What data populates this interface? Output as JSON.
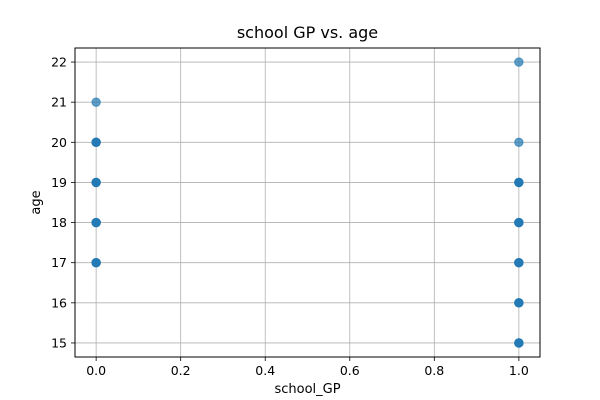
{
  "chart_data": {
    "type": "scatter",
    "title": "school GP vs. age",
    "xlabel": "school_GP",
    "ylabel": "age",
    "xlim": [
      -0.05,
      1.05
    ],
    "ylim": [
      14.65,
      22.35
    ],
    "xticks": [
      0.0,
      0.2,
      0.4,
      0.6,
      0.8,
      1.0
    ],
    "xtick_labels": [
      "0.0",
      "0.2",
      "0.4",
      "0.6",
      "0.8",
      "1.0"
    ],
    "yticks": [
      15,
      16,
      17,
      18,
      19,
      20,
      21,
      22
    ],
    "ytick_labels": [
      "15",
      "16",
      "17",
      "18",
      "19",
      "20",
      "21",
      "22"
    ],
    "grid": true,
    "color": "#1f77b4",
    "points": [
      {
        "x": 0,
        "y": 17
      },
      {
        "x": 0,
        "y": 18
      },
      {
        "x": 0,
        "y": 19
      },
      {
        "x": 0,
        "y": 20
      },
      {
        "x": 0,
        "y": 21
      },
      {
        "x": 1,
        "y": 15
      },
      {
        "x": 1,
        "y": 16
      },
      {
        "x": 1,
        "y": 17
      },
      {
        "x": 1,
        "y": 18
      },
      {
        "x": 1,
        "y": 19
      },
      {
        "x": 1,
        "y": 20
      },
      {
        "x": 1,
        "y": 22
      }
    ],
    "dense_points": [
      {
        "x": 0,
        "y": 17
      },
      {
        "x": 0,
        "y": 18
      },
      {
        "x": 0,
        "y": 19
      },
      {
        "x": 0,
        "y": 20
      },
      {
        "x": 1,
        "y": 15
      },
      {
        "x": 1,
        "y": 16
      },
      {
        "x": 1,
        "y": 17
      },
      {
        "x": 1,
        "y": 18
      },
      {
        "x": 1,
        "y": 19
      }
    ]
  }
}
